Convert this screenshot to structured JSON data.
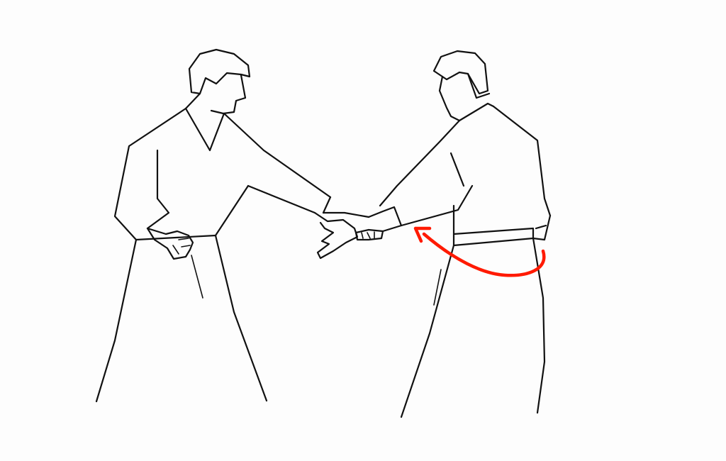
{
  "illustration": {
    "figures": [
      "left-person",
      "right-person"
    ],
    "annotation": {
      "type": "curved-arrow",
      "color": "#ff1a00",
      "direction": "from-right-hip-to-wrist"
    },
    "colors": {
      "ink": "#111111",
      "paper": "#fdfdfd"
    }
  }
}
